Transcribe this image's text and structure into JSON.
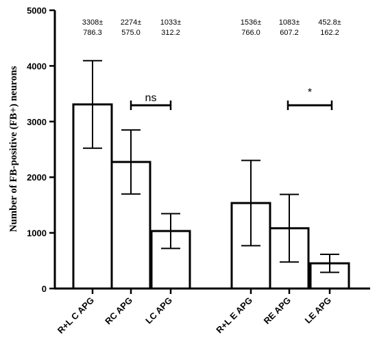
{
  "chart_data": {
    "type": "bar",
    "ylabel": "Number of FB-positive (FB+) neurons",
    "ylim": [
      0,
      5000
    ],
    "yticks": [
      0,
      1000,
      2000,
      3000,
      4000,
      5000
    ],
    "categories": [
      "R+L C APG",
      "RC APG",
      "LC APG",
      "R+L E APG",
      "RE APG",
      "LE APG"
    ],
    "values": [
      3308,
      2274,
      1033,
      1536,
      1083,
      452.8
    ],
    "errors": [
      786.3,
      575.0,
      312.2,
      766.0,
      607.2,
      162.2
    ],
    "annotations": [
      {
        "mean": "3308±",
        "sd": "786.3"
      },
      {
        "mean": "2274±",
        "sd": "575.0"
      },
      {
        "mean": "1033±",
        "sd": "312.2"
      },
      {
        "mean": "1536±",
        "sd": "766.0"
      },
      {
        "mean": "1083±",
        "sd": "607.2"
      },
      {
        "mean": "452.8±",
        "sd": "162.2"
      }
    ],
    "significance": [
      {
        "between": [
          "RC APG",
          "LC APG"
        ],
        "label": "ns"
      },
      {
        "between": [
          "RE APG",
          "LE APG"
        ],
        "label": "*"
      }
    ],
    "grid": false,
    "bar_fill": "#ffffff",
    "bar_stroke": "#000000"
  }
}
